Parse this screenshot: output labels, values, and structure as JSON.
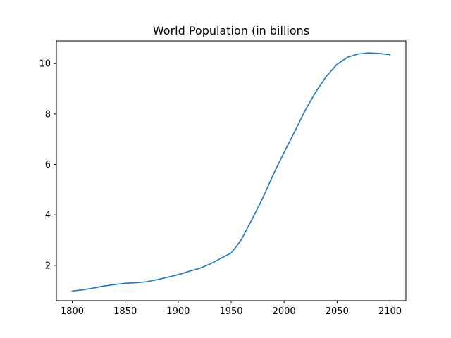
{
  "chart_data": {
    "type": "line",
    "title": "World Population (in billions",
    "xlabel": "",
    "ylabel": "",
    "xlim": [
      1785,
      2115
    ],
    "ylim": [
      0.6,
      10.9
    ],
    "x_ticks": [
      1800,
      1850,
      1900,
      1950,
      2000,
      2050,
      2100
    ],
    "y_ticks": [
      2,
      4,
      6,
      8,
      10
    ],
    "grid": false,
    "legend": "none",
    "series": [
      {
        "color": "#1f77b4",
        "x": [
          1800,
          1810,
          1820,
          1830,
          1840,
          1850,
          1860,
          1870,
          1880,
          1890,
          1900,
          1910,
          1920,
          1930,
          1940,
          1950,
          1955,
          1960,
          1970,
          1980,
          1990,
          2000,
          2010,
          2020,
          2030,
          2040,
          2050,
          2060,
          2070,
          2080,
          2090,
          2100
        ],
        "y": [
          0.98,
          1.03,
          1.1,
          1.18,
          1.24,
          1.29,
          1.31,
          1.35,
          1.43,
          1.53,
          1.63,
          1.76,
          1.88,
          2.05,
          2.27,
          2.49,
          2.75,
          3.05,
          3.85,
          4.68,
          5.62,
          6.48,
          7.3,
          8.15,
          8.88,
          9.5,
          9.97,
          10.25,
          10.38,
          10.42,
          10.4,
          10.35
        ]
      }
    ]
  }
}
